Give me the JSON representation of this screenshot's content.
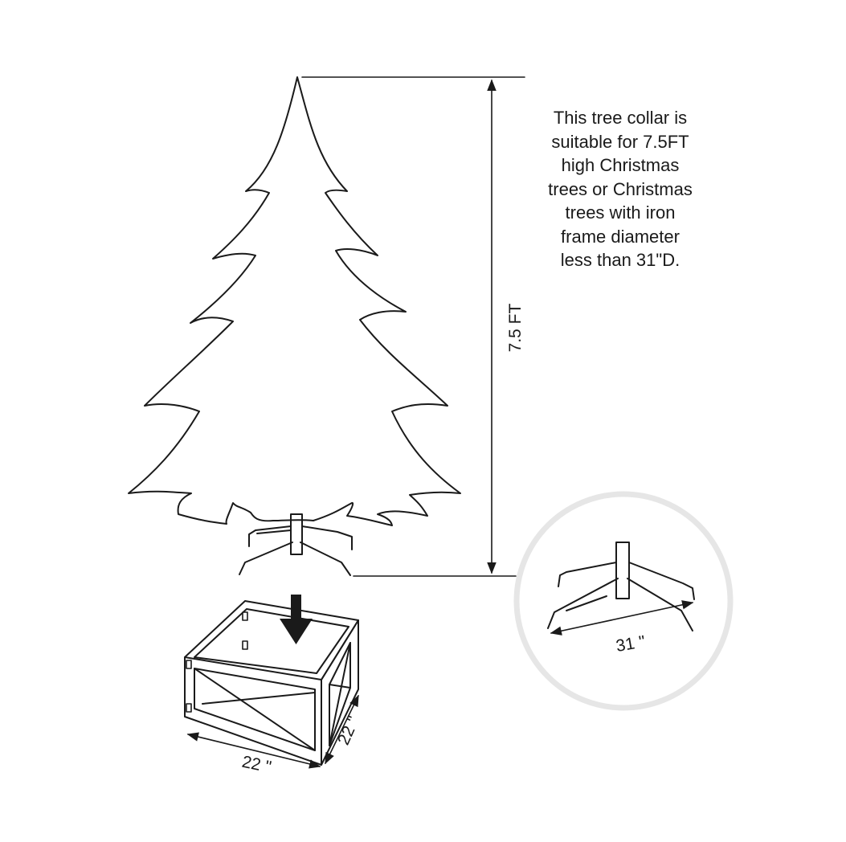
{
  "description_lines": [
    "This tree collar is",
    "suitable for 7.5FT",
    "high Christmas",
    "trees or Christmas",
    "trees with iron",
    "frame diameter",
    "less than 31\"D."
  ],
  "dimensions": {
    "tree_height": "7.5 FT",
    "stand_diameter": "31 \"",
    "collar_width": "22 \"",
    "collar_depth": "22 \""
  },
  "colors": {
    "line": "#1a1a1a",
    "circle": "#e6e6e6",
    "background": "#ffffff"
  }
}
